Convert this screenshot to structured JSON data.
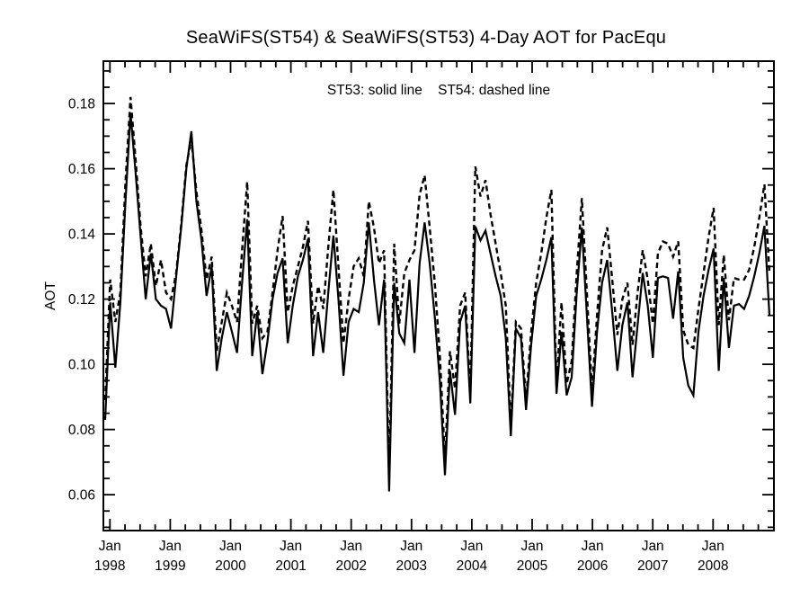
{
  "title": "SeaWiFS(ST54) & SeaWiFS(ST53) 4-Day AOT for PacEqu",
  "legend_note": "ST53: solid line    ST54: dashed line",
  "chart_data": {
    "type": "line",
    "title": "SeaWiFS(ST54) & SeaWiFS(ST53) 4-Day AOT for PacEqu",
    "xlabel": "",
    "ylabel": "AOT",
    "ylim": [
      0.049,
      0.193
    ],
    "y_major_ticks": [
      0.06,
      0.08,
      0.1,
      0.12,
      0.14,
      0.16,
      0.18
    ],
    "y_minor_tick_interval": 0.005,
    "x_tick_labels": [
      [
        "Jan",
        "1998"
      ],
      [
        "Jan",
        "1999"
      ],
      [
        "Jan",
        "2000"
      ],
      [
        "Jan",
        "2001"
      ],
      [
        "Jan",
        "2002"
      ],
      [
        "Jan",
        "2003"
      ],
      [
        "Jan",
        "2004"
      ],
      [
        "Jan",
        "2005"
      ],
      [
        "Jan",
        "2006"
      ],
      [
        "Jan",
        "2007"
      ],
      [
        "Jan",
        "2008"
      ]
    ],
    "x_minor_tick_interval_months": 3,
    "x_start": "Jan 1998",
    "x_step_months": 1,
    "grid": false,
    "legend_position": "top-center-inside",
    "colors": {
      "line": "#000000",
      "background": "#ffffff"
    },
    "series": [
      {
        "name": "ST53",
        "style": "solid",
        "values": [
          0.083,
          0.119,
          0.099,
          0.119,
          0.15,
          0.177,
          0.159,
          0.139,
          0.12,
          0.134,
          0.12,
          0.118,
          0.117,
          0.111,
          0.127,
          0.142,
          0.16,
          0.1715,
          0.15,
          0.138,
          0.121,
          0.13,
          0.098,
          0.108,
          0.116,
          0.11,
          0.1035,
          0.125,
          0.1445,
          0.1025,
          0.116,
          0.097,
          0.107,
          0.12,
          0.128,
          0.1325,
          0.1065,
          0.118,
          0.127,
          0.132,
          0.1385,
          0.1025,
          0.116,
          0.1035,
          0.122,
          0.1395,
          0.12,
          0.0965,
          0.113,
          0.117,
          0.116,
          0.125,
          0.1435,
          0.126,
          0.112,
          0.126,
          0.061,
          0.125,
          0.1095,
          0.1065,
          0.126,
          0.1035,
          0.131,
          0.1435,
          0.131,
          0.1145,
          0.095,
          0.066,
          0.098,
          0.0845,
          0.113,
          0.118,
          0.088,
          0.1423,
          0.138,
          0.141,
          0.134,
          0.127,
          0.121,
          0.108,
          0.078,
          0.111,
          0.108,
          0.086,
          0.106,
          0.121,
          0.126,
          0.132,
          0.139,
          0.091,
          0.11,
          0.0905,
          0.096,
          0.122,
          0.142,
          0.115,
          0.087,
          0.11,
          0.125,
          0.132,
          0.116,
          0.098,
          0.112,
          0.119,
          0.096,
          0.112,
          0.128,
          0.118,
          0.102,
          0.1265,
          0.127,
          0.1265,
          0.114,
          0.1285,
          0.102,
          0.0935,
          0.0905,
          0.11,
          0.121,
          0.129,
          0.1355,
          0.098,
          0.1265,
          0.105,
          0.118,
          0.1185,
          0.117,
          0.121,
          0.127,
          0.134,
          0.1425,
          0.115
        ]
      },
      {
        "name": "ST54",
        "style": "dashed",
        "values": [
          0.089,
          0.126,
          0.113,
          0.122,
          0.156,
          0.182,
          0.163,
          0.142,
          0.127,
          0.137,
          0.124,
          0.132,
          0.122,
          0.12,
          0.128,
          0.143,
          0.161,
          0.169,
          0.153,
          0.141,
          0.126,
          0.133,
          0.104,
          0.113,
          0.122,
          0.118,
          0.113,
          0.135,
          0.156,
          0.1125,
          0.118,
          0.108,
          0.11,
          0.122,
          0.135,
          0.1455,
          0.116,
          0.124,
          0.13,
          0.136,
          0.144,
          0.1125,
          0.124,
          0.117,
          0.136,
          0.1535,
          0.13,
          0.1065,
          0.12,
          0.13,
          0.1325,
          0.127,
          0.15,
          0.142,
          0.131,
          0.135,
          0.066,
          0.137,
          0.1125,
          0.128,
          0.132,
          0.135,
          0.152,
          0.158,
          0.142,
          0.125,
          0.103,
          0.071,
          0.104,
          0.0925,
          0.118,
          0.122,
          0.091,
          0.1607,
          0.1515,
          0.1565,
          0.146,
          0.137,
          0.128,
          0.118,
          0.081,
          0.113,
          0.111,
          0.089,
          0.11,
          0.125,
          0.134,
          0.145,
          0.1535,
          0.094,
          0.119,
          0.094,
          0.101,
          0.128,
          0.151,
          0.122,
          0.092,
          0.115,
          0.135,
          0.142,
          0.126,
          0.109,
          0.12,
          0.125,
          0.106,
          0.122,
          0.135,
          0.126,
          0.1125,
          0.134,
          0.1377,
          0.137,
          0.133,
          0.1377,
          0.1105,
          0.106,
          0.105,
          0.117,
          0.128,
          0.139,
          0.148,
          0.112,
          0.1335,
          0.1135,
          0.1265,
          0.126,
          0.126,
          0.129,
          0.136,
          0.145,
          0.1552,
          0.128
        ]
      }
    ]
  }
}
